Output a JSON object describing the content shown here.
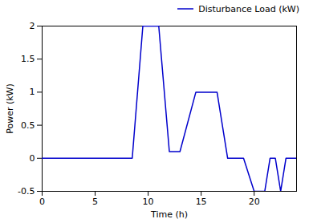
{
  "chart_data": {
    "type": "line",
    "xlabel": "Time (h)",
    "ylabel": "Power (kW)",
    "x": [
      0,
      8.5,
      9.5,
      11.0,
      12.0,
      13.0,
      14.5,
      16.5,
      17.5,
      19.0,
      20.0,
      21.0,
      21.5,
      22.0,
      22.5,
      23.0,
      24
    ],
    "series": [
      {
        "name": "Disturbance Load (kW)",
        "color": "#0000cc",
        "values": [
          0,
          0,
          2,
          2,
          0.1,
          0.1,
          1.0,
          1.0,
          0.0,
          0.0,
          -0.5,
          -0.5,
          0.0,
          0.0,
          -0.5,
          0.0,
          0
        ]
      }
    ],
    "xlim": [
      0,
      24
    ],
    "ylim": [
      -0.5,
      2
    ],
    "xticks": [
      0,
      5,
      10,
      15,
      20
    ],
    "yticks": [
      -0.5,
      0,
      0.5,
      1,
      1.5,
      2
    ],
    "grid": false,
    "legend": "upper right"
  }
}
